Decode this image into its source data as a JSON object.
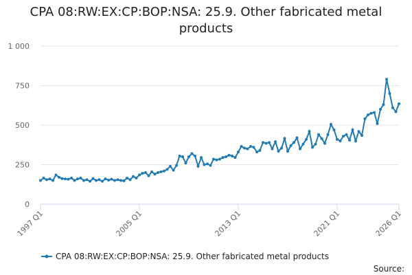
{
  "chart_data": {
    "type": "line",
    "title": "CPA 08:RW:EX:CP:BOP:NSA: 25.9. Other fabricated metal products",
    "source": "Source:",
    "categories": [
      "1997 Q1",
      null,
      null,
      null,
      null,
      null,
      null,
      null,
      null,
      null,
      null,
      null,
      null,
      null,
      null,
      null,
      null,
      null,
      null,
      null,
      null,
      null,
      null,
      null,
      null,
      null,
      null,
      null,
      null,
      null,
      null,
      null,
      "2005 Q1",
      null,
      null,
      null,
      null,
      null,
      null,
      null,
      null,
      null,
      null,
      null,
      null,
      null,
      null,
      null,
      null,
      null,
      null,
      null,
      null,
      null,
      null,
      null,
      null,
      null,
      null,
      null,
      null,
      null,
      null,
      null,
      "2013 Q1",
      null,
      null,
      null,
      null,
      null,
      null,
      null,
      null,
      null,
      null,
      null,
      null,
      null,
      null,
      null,
      null,
      null,
      null,
      null,
      null,
      null,
      null,
      null,
      null,
      null,
      null,
      null,
      null,
      null,
      null,
      null,
      "2021 Q1",
      null,
      null,
      null,
      null,
      null,
      null,
      null,
      null,
      null,
      null,
      null,
      null,
      null,
      null,
      null,
      null,
      null,
      null,
      null,
      "2026 Q1"
    ],
    "series": [
      {
        "name": "CPA 08:RW:EX:CP:BOP:NSA: 25.9. Other fabricated metal products",
        "color": "#1f7ab5",
        "values": [
          150,
          165,
          155,
          160,
          150,
          185,
          170,
          162,
          160,
          158,
          165,
          150,
          160,
          165,
          150,
          155,
          145,
          162,
          150,
          155,
          145,
          160,
          152,
          158,
          150,
          155,
          150,
          148,
          165,
          155,
          175,
          165,
          185,
          195,
          200,
          180,
          205,
          190,
          200,
          205,
          210,
          220,
          240,
          215,
          245,
          305,
          300,
          260,
          300,
          320,
          305,
          240,
          295,
          250,
          255,
          245,
          285,
          280,
          285,
          295,
          300,
          310,
          305,
          295,
          330,
          365,
          355,
          350,
          365,
          360,
          330,
          340,
          390,
          385,
          390,
          350,
          395,
          335,
          355,
          415,
          335,
          370,
          390,
          420,
          350,
          380,
          410,
          460,
          360,
          380,
          440,
          415,
          385,
          440,
          505,
          470,
          410,
          400,
          430,
          440,
          405,
          470,
          400,
          460,
          435,
          540,
          565,
          575,
          580,
          510,
          600,
          630,
          790,
          700,
          610,
          585,
          635
        ]
      }
    ],
    "ylim": [
      0,
      1000
    ],
    "yticks": [
      0,
      250,
      500,
      750,
      {
        "value": 1000,
        "label": "1 000"
      }
    ],
    "grid": true,
    "legend": "bottom"
  }
}
